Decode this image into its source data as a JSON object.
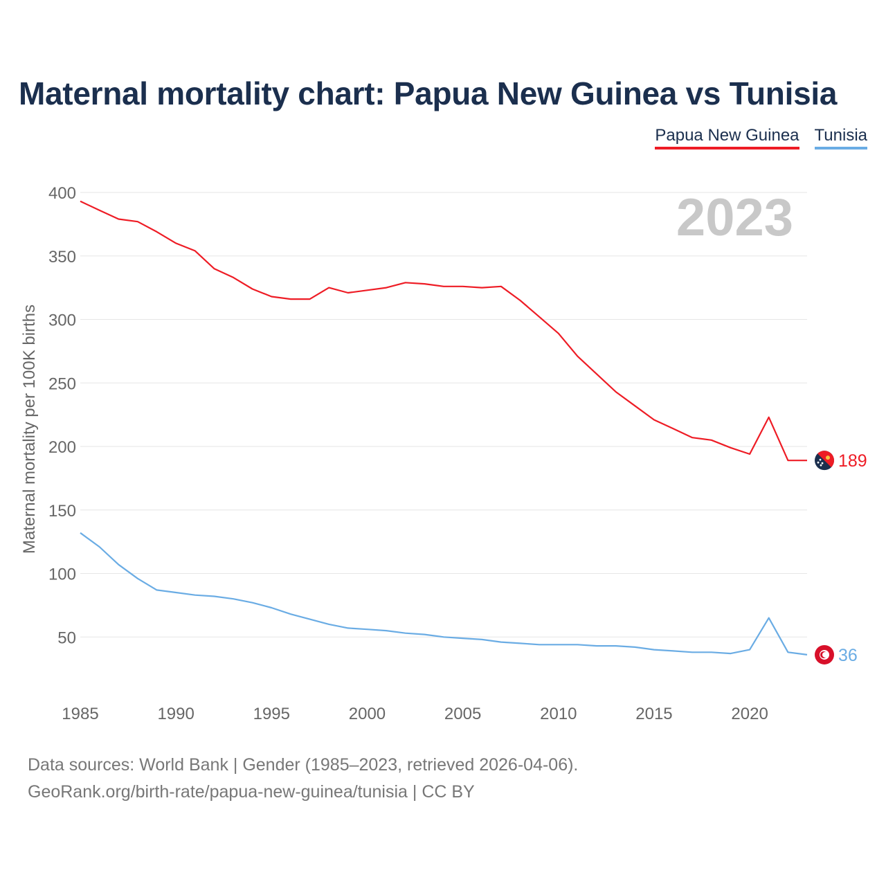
{
  "title": "Maternal mortality chart: Papua New Guinea vs Tunisia",
  "legend": {
    "png": "Papua New Guinea",
    "tun": "Tunisia"
  },
  "year_watermark": "2023",
  "footer": {
    "line1": "Data sources: World Bank | Gender (1985–2023, retrieved 2026-04-06).",
    "line2": "GeoRank.org/birth-rate/papua-new-guinea/tunisia | CC BY"
  },
  "colors": {
    "png": "#ee1c25",
    "tun": "#6aace4",
    "text": "#1b2f4e"
  },
  "chart_data": {
    "type": "line",
    "title": "Maternal mortality chart: Papua New Guinea vs Tunisia",
    "ylabel": "Maternal mortality per 100K births",
    "xlabel": "",
    "xlim": [
      1985,
      2023
    ],
    "ylim": [
      0,
      400
    ],
    "y_ticks": [
      50,
      100,
      150,
      200,
      250,
      300,
      350,
      400
    ],
    "x_ticks": [
      1985,
      1990,
      1995,
      2000,
      2005,
      2010,
      2015,
      2020
    ],
    "x": [
      1985,
      1986,
      1987,
      1988,
      1989,
      1990,
      1991,
      1992,
      1993,
      1994,
      1995,
      1996,
      1997,
      1998,
      1999,
      2000,
      2001,
      2002,
      2003,
      2004,
      2005,
      2006,
      2007,
      2008,
      2009,
      2010,
      2011,
      2012,
      2013,
      2014,
      2015,
      2016,
      2017,
      2018,
      2019,
      2020,
      2021,
      2022,
      2023
    ],
    "series": [
      {
        "name": "Papua New Guinea",
        "color": "#ee1c25",
        "end_label": "189",
        "values": [
          393,
          386,
          379,
          377,
          369,
          360,
          354,
          340,
          333,
          324,
          318,
          316,
          316,
          325,
          321,
          323,
          325,
          329,
          328,
          326,
          326,
          325,
          326,
          315,
          302,
          289,
          271,
          257,
          243,
          232,
          221,
          214,
          207,
          205,
          199,
          194,
          223,
          189,
          189
        ]
      },
      {
        "name": "Tunisia",
        "color": "#6aace4",
        "end_label": "36",
        "values": [
          132,
          121,
          107,
          96,
          87,
          85,
          83,
          82,
          80,
          77,
          73,
          68,
          64,
          60,
          57,
          56,
          55,
          53,
          52,
          50,
          49,
          48,
          46,
          45,
          44,
          44,
          44,
          43,
          43,
          42,
          40,
          39,
          38,
          38,
          37,
          40,
          65,
          38,
          36
        ]
      }
    ]
  }
}
